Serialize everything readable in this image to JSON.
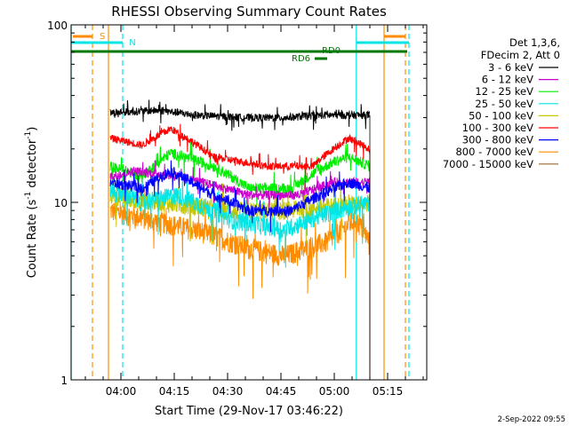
{
  "chart_data": {
    "type": "line",
    "title": "RHESSI Observing Summary Count Rates",
    "xlabel": "Start Time (29-Nov-17 03:46:22)",
    "ylabel": "Count Rate (s⁻¹ detector⁻¹)",
    "ylabel_main": "Count Rate (s",
    "ylabel_sup1": "-1",
    "ylabel_mid": " detector",
    "ylabel_sup2": "-1",
    "ylabel_end": ")",
    "yscale": "log",
    "ylim": [
      1,
      100
    ],
    "xlim_minutes_after_0346": [
      0,
      100
    ],
    "x_ticks": [
      {
        "label": "04:00",
        "t": 14
      },
      {
        "label": "04:15",
        "t": 29
      },
      {
        "label": "04:30",
        "t": 44
      },
      {
        "label": "04:45",
        "t": 59
      },
      {
        "label": "05:00",
        "t": 74
      },
      {
        "label": "05:15",
        "t": 89
      }
    ],
    "y_ticks": [
      {
        "label": "1",
        "v": 1
      },
      {
        "label": "10",
        "v": 10
      },
      {
        "label": "100",
        "v": 100
      }
    ],
    "data_start_t": 11,
    "data_end_t": 84,
    "legend_header": [
      "Det 1,3,6,",
      "FDecim 2, Att 0"
    ],
    "series": [
      {
        "name": "3 - 6 keV",
        "color": "#000000",
        "profile": [
          [
            11,
            32
          ],
          [
            25,
            33
          ],
          [
            35,
            31
          ],
          [
            50,
            30
          ],
          [
            60,
            30
          ],
          [
            70,
            31
          ],
          [
            84,
            31
          ]
        ],
        "noise": 0.05
      },
      {
        "name": "6 - 12 keV",
        "color": "#cc00cc",
        "profile": [
          [
            11,
            14
          ],
          [
            18,
            15
          ],
          [
            30,
            14
          ],
          [
            50,
            11
          ],
          [
            64,
            11
          ],
          [
            74,
            13
          ],
          [
            84,
            13
          ]
        ],
        "noise": 0.06
      },
      {
        "name": "12 - 25 keV",
        "color": "#00ee00",
        "profile": [
          [
            11,
            16
          ],
          [
            20,
            14
          ],
          [
            28,
            19
          ],
          [
            40,
            16
          ],
          [
            50,
            12
          ],
          [
            62,
            12
          ],
          [
            74,
            17
          ],
          [
            78,
            18
          ],
          [
            84,
            16
          ]
        ],
        "noise": 0.07
      },
      {
        "name": "25 - 50 keV",
        "color": "#00e5e5",
        "profile": [
          [
            11,
            12
          ],
          [
            20,
            10
          ],
          [
            30,
            11
          ],
          [
            45,
            8
          ],
          [
            60,
            7
          ],
          [
            74,
            9
          ],
          [
            84,
            10
          ]
        ],
        "noise": 0.12
      },
      {
        "name": "50 - 100 keV",
        "color": "#c8c800",
        "profile": [
          [
            11,
            11
          ],
          [
            25,
            10
          ],
          [
            45,
            9
          ],
          [
            60,
            9
          ],
          [
            84,
            10
          ]
        ],
        "noise": 0.12
      },
      {
        "name": "100 - 300 keV",
        "color": "#ff0000",
        "profile": [
          [
            11,
            23
          ],
          [
            20,
            21
          ],
          [
            28,
            26
          ],
          [
            40,
            18
          ],
          [
            55,
            16
          ],
          [
            68,
            16
          ],
          [
            78,
            23
          ],
          [
            84,
            20
          ]
        ],
        "noise": 0.05
      },
      {
        "name": "300 - 800 keV",
        "color": "#0000ff",
        "profile": [
          [
            11,
            13
          ],
          [
            20,
            12
          ],
          [
            28,
            15
          ],
          [
            40,
            11
          ],
          [
            50,
            9
          ],
          [
            62,
            9
          ],
          [
            74,
            12
          ],
          [
            78,
            13
          ],
          [
            84,
            12
          ]
        ],
        "noise": 0.07
      },
      {
        "name": "800 - 7000 keV",
        "color": "#ff8c00",
        "profile": [
          [
            11,
            9
          ],
          [
            22,
            8
          ],
          [
            35,
            7
          ],
          [
            50,
            5.5
          ],
          [
            60,
            5
          ],
          [
            72,
            6
          ],
          [
            80,
            8
          ],
          [
            84,
            6
          ]
        ],
        "noise": 0.14
      },
      {
        "name": "7000 - 15000 keV",
        "color": "#996633",
        "profile": [],
        "noise": 0
      }
    ],
    "annotations": [
      {
        "label": "S",
        "color": "#ff8c00"
      },
      {
        "label": "N",
        "color": "#00e5e5"
      },
      {
        "label": "RD0",
        "color": "#007700"
      },
      {
        "label": "RD6",
        "color": "#007700"
      }
    ],
    "vertical_lines": [
      {
        "t": 0,
        "color": "#00e5e5",
        "style": "solid"
      },
      {
        "t": 6,
        "color": "#ff8c00",
        "style": "dashed"
      },
      {
        "t": 10.5,
        "color": "#ff8c00",
        "style": "solid"
      },
      {
        "t": 14.5,
        "color": "#00e5e5",
        "style": "dashed"
      },
      {
        "t": 80.2,
        "color": "#00e5e5",
        "style": "solid"
      },
      {
        "t": 88,
        "color": "#ff8c00",
        "style": "solid"
      },
      {
        "t": 94,
        "color": "#ff8c00",
        "style": "dashed"
      },
      {
        "t": 95,
        "color": "#00e5e5",
        "style": "dashed"
      }
    ],
    "grid": false,
    "legend_placement": "right"
  },
  "footer": {
    "date": "2-Sep-2022 09:55"
  }
}
